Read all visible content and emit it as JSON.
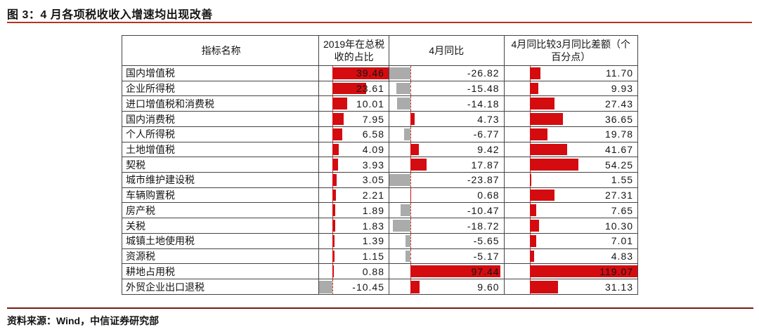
{
  "title": "图 3：4 月各项税收收入增速均出现改善",
  "source": "资料来源：Wind，中信证券研究部",
  "table": {
    "headers": [
      "指标名称",
      "2019年在总税收的占比",
      "4月同比",
      "4月同比较3月同比差额（个百分点）"
    ]
  },
  "colors": {
    "positive_bar": "#d40c10",
    "negative_bar": "#ababab",
    "axis_dash": "#c0392b",
    "title_rule": "#b5341f",
    "footer_rule": "#7a1a12",
    "border": "#444444",
    "text": "#141414"
  },
  "chart_data": {
    "type": "table",
    "title": "图 3：4 月各项税收收入增速均出现改善",
    "columns": [
      "指标名称",
      "2019年在总税收的占比",
      "4月同比",
      "4月同比较3月同比差额（个百分点）"
    ],
    "categories": [
      "国内增值税",
      "企业所得税",
      "进口增值税和消费税",
      "国内消费税",
      "个人所得税",
      "土地增值税",
      "契税",
      "城市维护建设税",
      "车辆购置税",
      "房产税",
      "关税",
      "城镇土地使用税",
      "资源税",
      "耕地占用税",
      "外贸企业出口退税"
    ],
    "series": [
      {
        "name": "2019年在总税收的占比",
        "values": [
          39.46,
          23.61,
          10.01,
          7.95,
          6.58,
          4.09,
          3.93,
          3.05,
          2.21,
          1.89,
          1.83,
          1.39,
          1.15,
          0.88,
          -10.45
        ]
      },
      {
        "name": "4月同比",
        "values": [
          -26.82,
          -15.48,
          -14.18,
          4.73,
          -6.77,
          9.42,
          17.87,
          -23.87,
          0.68,
          -10.47,
          -18.72,
          -5.65,
          -5.17,
          97.44,
          9.6
        ]
      },
      {
        "name": "4月同比较3月同比差额（个百分点）",
        "values": [
          11.7,
          9.93,
          27.43,
          36.65,
          19.78,
          41.67,
          54.25,
          1.55,
          27.31,
          7.65,
          10.3,
          7.01,
          4.83,
          119.07,
          31.13
        ]
      }
    ],
    "legend": "none",
    "bar_style": "in-cell data bars: red = positive, gray = negative, dashed vertical axis at zero",
    "source": "资料来源：Wind，中信证券研究部"
  }
}
